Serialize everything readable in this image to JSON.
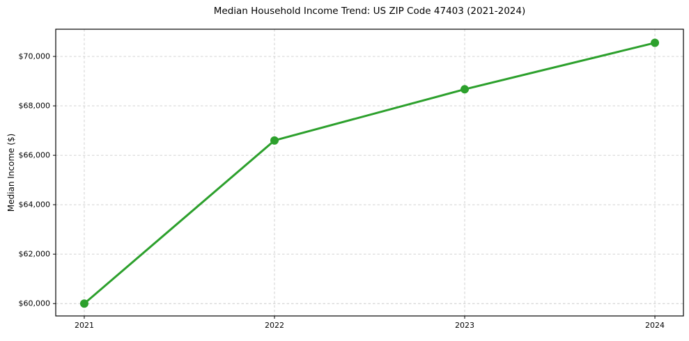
{
  "figure": {
    "background": "#ffffff"
  },
  "chart_data": {
    "type": "line",
    "title": "Median Household Income Trend: US ZIP Code 47403 (2021-2024)",
    "xlabel": "",
    "ylabel": "Median Income ($)",
    "x": [
      2021,
      2022,
      2023,
      2024
    ],
    "x_tick_labels": [
      "2021",
      "2022",
      "2023",
      "2024"
    ],
    "series": [
      {
        "values": [
          60000,
          66600,
          68670,
          70550
        ],
        "color": "#2ca02c",
        "marker": "circle"
      }
    ],
    "y_ticks": [
      60000,
      62000,
      64000,
      66000,
      68000,
      70000
    ],
    "y_tick_labels": [
      "$60,000",
      "$62,000",
      "$64,000",
      "$66,000",
      "$68,000",
      "$70,000"
    ],
    "xlim": [
      2020.85,
      2024.15
    ],
    "ylim": [
      59500,
      71100
    ],
    "grid": "both-dashed",
    "legend": "none",
    "grid_color": "#cccccc",
    "axis_color": "#000000",
    "text_color": "#000000"
  }
}
